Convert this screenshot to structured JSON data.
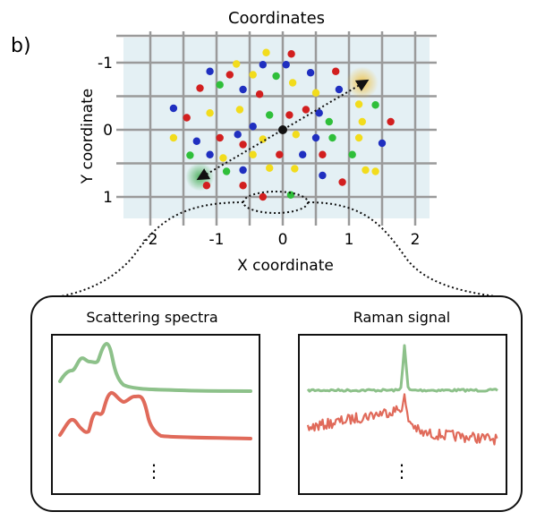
{
  "panel_label": "b)",
  "scatter": {
    "title": "Coordinates",
    "xlabel": "X coordinate",
    "ylabel": "Y coordinate",
    "x_ticks": [
      "-2",
      "-1",
      "0",
      "1",
      "2"
    ],
    "y_ticks": [
      "-1",
      "0",
      "1"
    ],
    "y_axis_inverted": true,
    "background_color": "#e4f0f4",
    "grid_color": "#9a9a9a",
    "particle_colors": {
      "red": "#d21f1f",
      "blue": "#1f2fc0",
      "yellow": "#f2dc1c",
      "green": "#2fbf3a",
      "center": "#111111"
    },
    "center_point": {
      "x": 0.0,
      "y": 0.0
    },
    "scan_start_glow": {
      "x": 1.2,
      "y": -0.7,
      "color": "#f0c040"
    },
    "scan_end_glow": {
      "x": -1.25,
      "y": 0.7,
      "color": "#3aa84a"
    },
    "particles": [
      {
        "x": -0.25,
        "y": -1.15,
        "c": "yellow"
      },
      {
        "x": 0.13,
        "y": -1.13,
        "c": "red"
      },
      {
        "x": -0.7,
        "y": -0.98,
        "c": "yellow"
      },
      {
        "x": -0.3,
        "y": -0.97,
        "c": "blue"
      },
      {
        "x": 0.05,
        "y": -0.97,
        "c": "blue"
      },
      {
        "x": 0.42,
        "y": -0.85,
        "c": "blue"
      },
      {
        "x": 0.8,
        "y": -0.87,
        "c": "red"
      },
      {
        "x": -1.1,
        "y": -0.87,
        "c": "blue"
      },
      {
        "x": -0.8,
        "y": -0.82,
        "c": "red"
      },
      {
        "x": -0.45,
        "y": -0.82,
        "c": "yellow"
      },
      {
        "x": -0.1,
        "y": -0.8,
        "c": "green"
      },
      {
        "x": 0.15,
        "y": -0.7,
        "c": "yellow"
      },
      {
        "x": -1.25,
        "y": -0.62,
        "c": "red"
      },
      {
        "x": -0.95,
        "y": -0.67,
        "c": "green"
      },
      {
        "x": -0.6,
        "y": -0.6,
        "c": "blue"
      },
      {
        "x": -0.35,
        "y": -0.53,
        "c": "red"
      },
      {
        "x": 0.5,
        "y": -0.55,
        "c": "yellow"
      },
      {
        "x": 0.85,
        "y": -0.6,
        "c": "blue"
      },
      {
        "x": -1.65,
        "y": -0.32,
        "c": "blue"
      },
      {
        "x": -1.45,
        "y": -0.18,
        "c": "red"
      },
      {
        "x": -1.1,
        "y": -0.25,
        "c": "yellow"
      },
      {
        "x": -0.65,
        "y": -0.3,
        "c": "yellow"
      },
      {
        "x": -0.2,
        "y": -0.22,
        "c": "green"
      },
      {
        "x": 0.1,
        "y": -0.22,
        "c": "red"
      },
      {
        "x": 0.35,
        "y": -0.3,
        "c": "red"
      },
      {
        "x": 0.55,
        "y": -0.25,
        "c": "blue"
      },
      {
        "x": 1.15,
        "y": -0.38,
        "c": "yellow"
      },
      {
        "x": 1.4,
        "y": -0.37,
        "c": "green"
      },
      {
        "x": -0.45,
        "y": -0.05,
        "c": "blue"
      },
      {
        "x": 0.7,
        "y": -0.12,
        "c": "green"
      },
      {
        "x": 1.2,
        "y": -0.12,
        "c": "yellow"
      },
      {
        "x": 1.63,
        "y": -0.12,
        "c": "red"
      },
      {
        "x": -1.65,
        "y": 0.12,
        "c": "yellow"
      },
      {
        "x": -1.3,
        "y": 0.17,
        "c": "blue"
      },
      {
        "x": -0.95,
        "y": 0.12,
        "c": "red"
      },
      {
        "x": -0.68,
        "y": 0.07,
        "c": "blue"
      },
      {
        "x": -0.3,
        "y": 0.14,
        "c": "yellow"
      },
      {
        "x": 0.2,
        "y": 0.07,
        "c": "yellow"
      },
      {
        "x": 0.5,
        "y": 0.12,
        "c": "blue"
      },
      {
        "x": 0.75,
        "y": 0.12,
        "c": "green"
      },
      {
        "x": 1.15,
        "y": 0.12,
        "c": "yellow"
      },
      {
        "x": 1.5,
        "y": 0.2,
        "c": "blue"
      },
      {
        "x": -0.6,
        "y": 0.22,
        "c": "red"
      },
      {
        "x": -1.4,
        "y": 0.38,
        "c": "green"
      },
      {
        "x": -1.1,
        "y": 0.37,
        "c": "blue"
      },
      {
        "x": -0.9,
        "y": 0.42,
        "c": "yellow"
      },
      {
        "x": -0.45,
        "y": 0.37,
        "c": "yellow"
      },
      {
        "x": -0.05,
        "y": 0.37,
        "c": "red"
      },
      {
        "x": 0.3,
        "y": 0.37,
        "c": "blue"
      },
      {
        "x": 0.6,
        "y": 0.37,
        "c": "red"
      },
      {
        "x": 1.05,
        "y": 0.37,
        "c": "green"
      },
      {
        "x": -0.2,
        "y": 0.57,
        "c": "yellow"
      },
      {
        "x": 1.25,
        "y": 0.6,
        "c": "yellow"
      },
      {
        "x": -0.85,
        "y": 0.62,
        "c": "green"
      },
      {
        "x": -0.6,
        "y": 0.6,
        "c": "blue"
      },
      {
        "x": 0.18,
        "y": 0.58,
        "c": "yellow"
      },
      {
        "x": 0.6,
        "y": 0.68,
        "c": "blue"
      },
      {
        "x": 0.9,
        "y": 0.78,
        "c": "red"
      },
      {
        "x": 1.4,
        "y": 0.62,
        "c": "yellow"
      },
      {
        "x": -1.15,
        "y": 0.83,
        "c": "red"
      },
      {
        "x": -0.6,
        "y": 0.83,
        "c": "red"
      },
      {
        "x": -0.3,
        "y": 1.0,
        "c": "red"
      },
      {
        "x": 0.12,
        "y": 0.97,
        "c": "green"
      }
    ]
  },
  "scattering_panel": {
    "title": "Scattering spectra",
    "ellipsis": "⋮",
    "green_color": "#8dc18a",
    "red_color": "#e06a5a"
  },
  "raman_panel": {
    "title": "Raman signal",
    "ellipsis": "⋮",
    "green_color": "#8dc18a",
    "red_color": "#e06a5a"
  }
}
